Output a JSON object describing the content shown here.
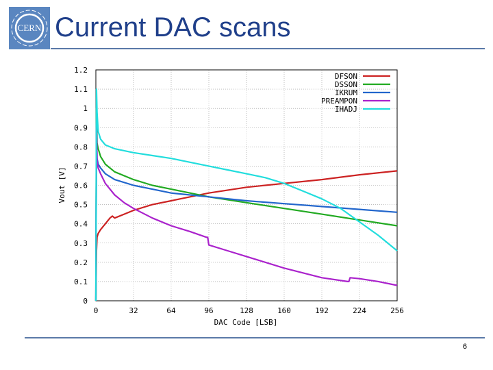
{
  "slide": {
    "title": "Current DAC scans",
    "page_number": "6",
    "logo_text": "CERN"
  },
  "colors": {
    "title": "#1f3f8a",
    "rule": "#5a79a8",
    "logo": "#5a86c0"
  },
  "chart_data": {
    "type": "line",
    "title": "",
    "xlabel": "DAC Code [LSB]",
    "ylabel": "Vout [V]",
    "xlim": [
      0,
      256
    ],
    "ylim": [
      0,
      1.2
    ],
    "x_ticks": [
      0,
      32,
      64,
      96,
      128,
      160,
      192,
      224,
      256
    ],
    "y_ticks": [
      0,
      0.1,
      0.2,
      0.3,
      0.4,
      0.5,
      0.6,
      0.7,
      0.8,
      0.9,
      1,
      1.1,
      1.2
    ],
    "grid": true,
    "legend_position": "top-right",
    "series": [
      {
        "name": "DFSON",
        "color": "#cc2222",
        "points": [
          [
            0,
            0
          ],
          [
            0.5,
            0.26
          ],
          [
            1,
            0.33
          ],
          [
            2,
            0.35
          ],
          [
            4,
            0.37
          ],
          [
            8,
            0.4
          ],
          [
            12,
            0.43
          ],
          [
            14,
            0.44
          ],
          [
            16,
            0.43
          ],
          [
            24,
            0.45
          ],
          [
            32,
            0.47
          ],
          [
            48,
            0.5
          ],
          [
            64,
            0.52
          ],
          [
            80,
            0.54
          ],
          [
            96,
            0.56
          ],
          [
            128,
            0.59
          ],
          [
            160,
            0.61
          ],
          [
            192,
            0.63
          ],
          [
            224,
            0.655
          ],
          [
            256,
            0.675
          ]
        ]
      },
      {
        "name": "DSSON",
        "color": "#22aa22",
        "points": [
          [
            0,
            0
          ],
          [
            0.5,
            1.0
          ],
          [
            1,
            0.82
          ],
          [
            2,
            0.79
          ],
          [
            4,
            0.75
          ],
          [
            8,
            0.71
          ],
          [
            16,
            0.67
          ],
          [
            32,
            0.63
          ],
          [
            48,
            0.6
          ],
          [
            64,
            0.58
          ],
          [
            80,
            0.56
          ],
          [
            96,
            0.54
          ],
          [
            128,
            0.51
          ],
          [
            160,
            0.48
          ],
          [
            192,
            0.45
          ],
          [
            224,
            0.42
          ],
          [
            256,
            0.39
          ]
        ]
      },
      {
        "name": "IKRUM",
        "color": "#2266cc",
        "points": [
          [
            0,
            0
          ],
          [
            0.5,
            0.92
          ],
          [
            1,
            0.74
          ],
          [
            2,
            0.71
          ],
          [
            4,
            0.69
          ],
          [
            8,
            0.66
          ],
          [
            16,
            0.63
          ],
          [
            32,
            0.6
          ],
          [
            48,
            0.58
          ],
          [
            64,
            0.56
          ],
          [
            80,
            0.55
          ],
          [
            96,
            0.54
          ],
          [
            128,
            0.52
          ],
          [
            160,
            0.505
          ],
          [
            192,
            0.49
          ],
          [
            224,
            0.475
          ],
          [
            256,
            0.46
          ]
        ]
      },
      {
        "name": "PREAMPON",
        "color": "#aa22cc",
        "points": [
          [
            0,
            0
          ],
          [
            0.5,
            0.9
          ],
          [
            1,
            0.72
          ],
          [
            2,
            0.69
          ],
          [
            4,
            0.66
          ],
          [
            8,
            0.61
          ],
          [
            16,
            0.55
          ],
          [
            24,
            0.51
          ],
          [
            32,
            0.48
          ],
          [
            48,
            0.43
          ],
          [
            64,
            0.39
          ],
          [
            80,
            0.36
          ],
          [
            94,
            0.33
          ],
          [
            95,
            0.33
          ],
          [
            96,
            0.29
          ],
          [
            112,
            0.26
          ],
          [
            128,
            0.23
          ],
          [
            160,
            0.17
          ],
          [
            192,
            0.12
          ],
          [
            214,
            0.1
          ],
          [
            215,
            0.1
          ],
          [
            216,
            0.12
          ],
          [
            224,
            0.115
          ],
          [
            240,
            0.1
          ],
          [
            256,
            0.08
          ]
        ]
      },
      {
        "name": "IHADJ",
        "color": "#22dddd",
        "points": [
          [
            0,
            0
          ],
          [
            0.5,
            1.1
          ],
          [
            1,
            0.98
          ],
          [
            2,
            0.88
          ],
          [
            4,
            0.84
          ],
          [
            8,
            0.81
          ],
          [
            16,
            0.79
          ],
          [
            32,
            0.77
          ],
          [
            48,
            0.755
          ],
          [
            64,
            0.74
          ],
          [
            80,
            0.72
          ],
          [
            96,
            0.7
          ],
          [
            112,
            0.68
          ],
          [
            128,
            0.66
          ],
          [
            144,
            0.64
          ],
          [
            160,
            0.61
          ],
          [
            176,
            0.57
          ],
          [
            192,
            0.53
          ],
          [
            208,
            0.48
          ],
          [
            224,
            0.41
          ],
          [
            240,
            0.34
          ],
          [
            256,
            0.26
          ]
        ]
      }
    ]
  }
}
